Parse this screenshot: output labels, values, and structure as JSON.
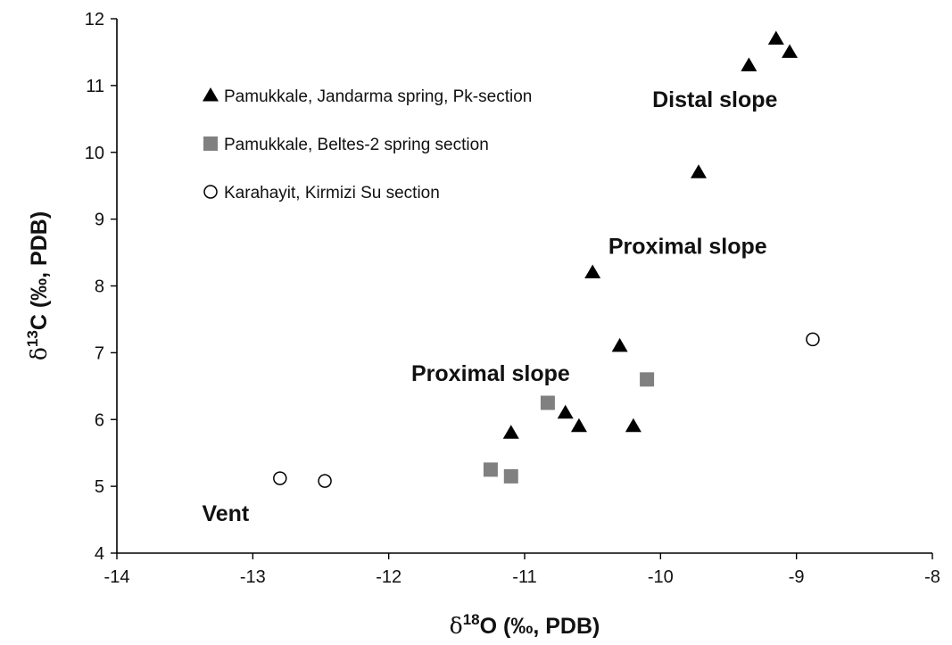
{
  "chart_data": {
    "type": "scatter",
    "xlabel": {
      "symbol": "δ",
      "sup": "18",
      "rest": "O (‰, PDB)"
    },
    "ylabel": {
      "symbol": "δ",
      "sup": "13",
      "rest": "C (‰, PDB)"
    },
    "xlim": [
      -14,
      -8
    ],
    "ylim": [
      4,
      12
    ],
    "xticks": [
      -14,
      -13,
      -12,
      -11,
      -10,
      -9,
      -8
    ],
    "yticks": [
      4,
      5,
      6,
      7,
      8,
      9,
      10,
      11,
      12
    ],
    "grid": false,
    "legend_position": "top-left",
    "series": [
      {
        "name": "Pamukkale, Jandarma spring, Pk-section",
        "marker": "triangle",
        "color": "#000000",
        "points": [
          {
            "x": -9.15,
            "y": 11.7
          },
          {
            "x": -9.05,
            "y": 11.5
          },
          {
            "x": -9.35,
            "y": 11.3
          },
          {
            "x": -9.72,
            "y": 9.7
          },
          {
            "x": -10.5,
            "y": 8.2
          },
          {
            "x": -10.3,
            "y": 7.1
          },
          {
            "x": -10.7,
            "y": 6.1
          },
          {
            "x": -10.6,
            "y": 5.9
          },
          {
            "x": -10.2,
            "y": 5.9
          },
          {
            "x": -11.1,
            "y": 5.8
          }
        ]
      },
      {
        "name": "Pamukkale, Beltes-2 spring section",
        "marker": "square",
        "color": "#808080",
        "points": [
          {
            "x": -10.83,
            "y": 6.25
          },
          {
            "x": -10.1,
            "y": 6.6
          },
          {
            "x": -11.25,
            "y": 5.25
          },
          {
            "x": -11.1,
            "y": 5.15
          }
        ]
      },
      {
        "name": "Karahayit, Kirmizi Su section",
        "marker": "circle-open",
        "color": "#000000",
        "points": [
          {
            "x": -8.88,
            "y": 7.2
          },
          {
            "x": -12.8,
            "y": 5.12
          },
          {
            "x": -12.47,
            "y": 5.08
          }
        ]
      }
    ],
    "annotations": [
      {
        "text": "Distal slope",
        "x": -9.6,
        "y": 10.8
      },
      {
        "text": "Proximal slope",
        "x": -9.8,
        "y": 8.6
      },
      {
        "text": "Proximal slope",
        "x": -11.25,
        "y": 6.7
      },
      {
        "text": "Vent",
        "x": -13.2,
        "y": 4.6
      }
    ]
  }
}
